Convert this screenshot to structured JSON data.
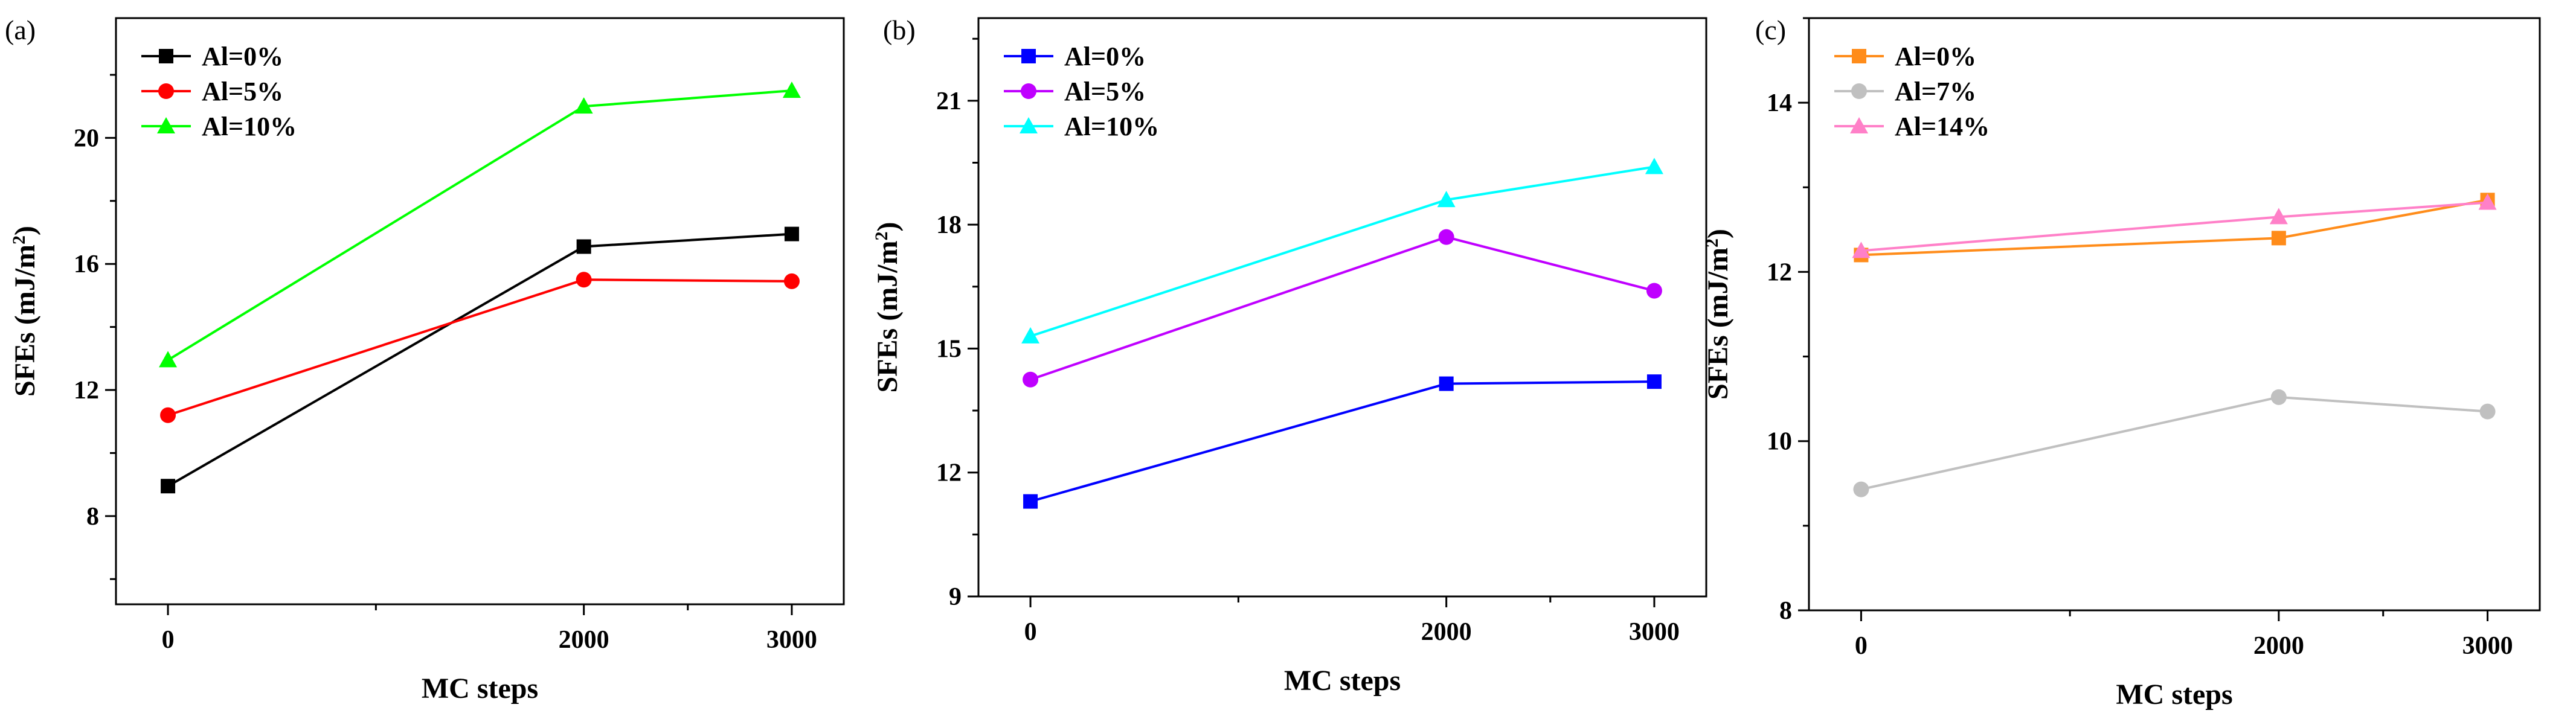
{
  "chart_data": [
    {
      "type": "line",
      "panel_label": "(a)",
      "xlabel": "MC steps",
      "ylabel": "SFEs (mJ/m",
      "ylabel_sup": "2",
      "ylabel_close": ")",
      "x": [
        0,
        2000,
        3000
      ],
      "x_ticks": [
        "0",
        "2000",
        "3000"
      ],
      "xlim": [
        -250,
        3250
      ],
      "ylim": [
        5.2,
        23.8
      ],
      "y_ticks": [
        8,
        12,
        16,
        20
      ],
      "legend_position": "top-left",
      "series": [
        {
          "name": "Al=0%",
          "color": "#000000",
          "marker": "square",
          "values": [
            8.95,
            16.55,
            16.95
          ]
        },
        {
          "name": "Al=5%",
          "color": "#ff0000",
          "marker": "circle",
          "values": [
            11.2,
            15.5,
            15.45
          ]
        },
        {
          "name": "Al=10%",
          "color": "#00ff00",
          "marker": "triangle",
          "values": [
            12.95,
            21.0,
            21.5
          ]
        }
      ]
    },
    {
      "type": "line",
      "panel_label": "(b)",
      "xlabel": "MC steps",
      "ylabel": "SFEs (mJ/m",
      "ylabel_sup": "2",
      "ylabel_close": ")",
      "x": [
        0,
        2000,
        3000
      ],
      "x_ticks": [
        "0",
        "2000",
        "3000"
      ],
      "xlim": [
        -250,
        3250
      ],
      "ylim": [
        9,
        23
      ],
      "y_ticks": [
        9,
        12,
        15,
        18,
        21
      ],
      "legend_position": "top-left",
      "series": [
        {
          "name": "Al=0%",
          "color": "#0000ff",
          "marker": "square",
          "values": [
            11.3,
            14.15,
            14.2
          ]
        },
        {
          "name": "Al=5%",
          "color": "#bf00ff",
          "marker": "circle",
          "values": [
            14.25,
            17.7,
            16.4
          ]
        },
        {
          "name": "Al=10%",
          "color": "#00ffff",
          "marker": "triangle",
          "values": [
            15.3,
            18.6,
            19.4
          ]
        }
      ]
    },
    {
      "type": "line",
      "panel_label": "(c)",
      "xlabel": "MC steps",
      "ylabel": "SFEs (mJ/m",
      "ylabel_sup": "2",
      "ylabel_close": ")",
      "x": [
        0,
        2000,
        3000
      ],
      "x_ticks": [
        "0",
        "2000",
        "3000"
      ],
      "xlim": [
        -250,
        3250
      ],
      "ylim": [
        8,
        15
      ],
      "y_ticks": [
        8,
        10,
        12,
        14
      ],
      "legend_position": "top-left",
      "series": [
        {
          "name": "Al=0%",
          "color": "#ff8c1a",
          "marker": "square",
          "values": [
            12.2,
            12.4,
            12.85
          ]
        },
        {
          "name": "Al=7%",
          "color": "#c0c0c0",
          "marker": "circle",
          "values": [
            9.43,
            10.52,
            10.35
          ]
        },
        {
          "name": "Al=14%",
          "color": "#ff80c8",
          "marker": "triangle",
          "values": [
            12.25,
            12.65,
            12.82
          ]
        }
      ]
    }
  ]
}
